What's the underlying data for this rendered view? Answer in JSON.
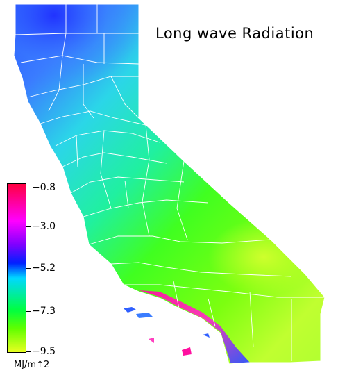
{
  "map": {
    "title": "Long wave Radiation",
    "region": "California counties"
  },
  "legend": {
    "ticks": [
      "−0.8",
      "−3.0",
      "−5.2",
      "−7.3",
      "−9.5"
    ],
    "units": "MJ/m↑2",
    "colors": {
      "top": "#ff0040",
      "magenta": "#ff00ff",
      "purple": "#8000ff",
      "blue": "#0020ff",
      "cyan": "#00d8ff",
      "green": "#00ff40",
      "lime": "#60ff00",
      "yellow": "#e0ff20"
    }
  },
  "colors": {
    "north_blue": "#3a5cff",
    "north_cyan": "#2bd6e8",
    "central_green": "#33f06a",
    "valley_green": "#40ff10",
    "desert_yellow": "#b8ff20",
    "coast_magenta": "#ff10a0",
    "county_lines": "#ffffff"
  }
}
